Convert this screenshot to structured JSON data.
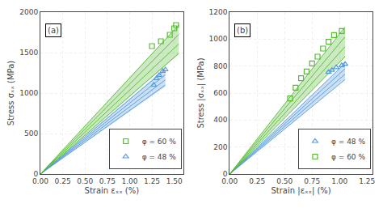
{
  "chart_data": [
    {
      "type": "band",
      "title": "(a)",
      "x_label": "Strain εₓₓ (%)",
      "y_label": "Stress σₓₓ (MPa)",
      "xlim": [
        0,
        1.6
      ],
      "ylim": [
        0,
        2000
      ],
      "xticks": [
        {
          "value": 0,
          "label": "0.00"
        },
        0.25,
        {
          "value": 0.5,
          "label": "0.50"
        },
        0.75,
        {
          "value": 1.0,
          "label": "1.00"
        },
        1.25,
        {
          "value": 1.5,
          "label": "1.50"
        }
      ],
      "yticks": [
        0,
        500,
        1000,
        1500,
        2000
      ],
      "grid": true,
      "legend": "lower right",
      "series": [
        {
          "name": "φ = 48 %",
          "color": "#5599dd",
          "marker": "triangle-up",
          "band": {
            "x": [
              0,
              1.4
            ],
            "lo": [
              0,
              1080
            ],
            "hi": [
              0,
              1310
            ]
          },
          "lines": [
            {
              "x": [
                0,
                1.4
              ],
              "y": [
                0,
                1100
              ]
            },
            {
              "x": [
                0,
                1.4
              ],
              "y": [
                0,
                1163.3333333333333
              ]
            },
            {
              "x": [
                0,
                1.4
              ],
              "y": [
                0,
                1226.6666666666667
              ]
            },
            {
              "x": [
                0,
                1.4
              ],
              "y": [
                0,
                1290
              ]
            }
          ],
          "markers": {
            "x": [
              1.27,
              1.3,
              1.33,
              1.37,
              1.4
            ],
            "y": [
              1100,
              1180,
              1220,
              1270,
              1290
            ]
          }
        },
        {
          "name": "φ = 60 %",
          "color": "#55bb33",
          "marker": "square",
          "band": {
            "x": [
              0,
              1.55
            ],
            "lo": [
              0,
              1480
            ],
            "hi": [
              0,
              1850
            ]
          },
          "lines": [
            {
              "x": [
                0,
                1.55
              ],
              "y": [
                0,
                1490
              ]
            },
            {
              "x": [
                0,
                1.55
              ],
              "y": [
                0,
                1606.6666666666667
              ]
            },
            {
              "x": [
                0,
                1.55
              ],
              "y": [
                0,
                1723.3333333333333
              ]
            },
            {
              "x": [
                0,
                1.55
              ],
              "y": [
                0,
                1840
              ]
            }
          ],
          "markers": {
            "x": [
              1.25,
              1.35,
              1.45,
              1.5,
              1.52
            ],
            "y": [
              1580,
              1640,
              1720,
              1800,
              1840
            ]
          }
        }
      ]
    },
    {
      "type": "band",
      "title": "(b)",
      "x_label": "Strain |εₓₓ| (%)",
      "y_label": "Stress |σₓₓ| (MPa)",
      "xlim": [
        0,
        1.3
      ],
      "ylim": [
        0,
        1200
      ],
      "xticks": [
        {
          "value": 0,
          "label": "0.00"
        },
        0.25,
        {
          "value": 0.5,
          "label": "0.50"
        },
        0.75,
        {
          "value": 1.0,
          "label": "1.00"
        },
        1.25
      ],
      "yticks": [
        0,
        200,
        400,
        600,
        800,
        1000,
        1200
      ],
      "grid": true,
      "legend": "lower right",
      "series": [
        {
          "name": "φ = 48 %",
          "color": "#5599dd",
          "marker": "triangle-up",
          "band": {
            "x": [
              0,
              1.05
            ],
            "lo": [
              0,
              700
            ],
            "hi": [
              0,
              820
            ]
          },
          "lines": [
            {
              "x": [
                0,
                1.05
              ],
              "y": [
                0,
                700
              ]
            },
            {
              "x": [
                0,
                1.05
              ],
              "y": [
                0,
                740
              ]
            },
            {
              "x": [
                0,
                1.05
              ],
              "y": [
                0,
                780
              ]
            },
            {
              "x": [
                0,
                1.05
              ],
              "y": [
                0,
                820
              ]
            }
          ],
          "markers": {
            "x": [
              0.9,
              0.93,
              0.97,
              1.02,
              1.05
            ],
            "y": [
              755,
              770,
              790,
              805,
              815
            ]
          }
        },
        {
          "name": "φ = 60 %",
          "color": "#55bb33",
          "marker": "square",
          "band": {
            "x": [
              0,
              1.05
            ],
            "lo": [
              0,
              870
            ],
            "hi": [
              0,
              1090
            ]
          },
          "lines": [
            {
              "x": [
                0,
                1.05
              ],
              "y": [
                0,
                870
              ]
            },
            {
              "x": [
                0,
                1.05
              ],
              "y": [
                0,
                943.3333333333334
              ]
            },
            {
              "x": [
                0,
                1.05
              ],
              "y": [
                0,
                1016.6666666666666
              ]
            },
            {
              "x": [
                0,
                1.05
              ],
              "y": [
                0,
                1090
              ]
            }
          ],
          "markers": {
            "x": [
              0.55,
              0.6,
              0.65,
              0.7,
              0.75,
              0.8,
              0.85,
              0.9,
              0.95,
              1.02
            ],
            "y": [
              560,
              640,
              710,
              760,
              820,
              870,
              930,
              980,
              1030,
              1060
            ]
          }
        }
      ]
    }
  ]
}
